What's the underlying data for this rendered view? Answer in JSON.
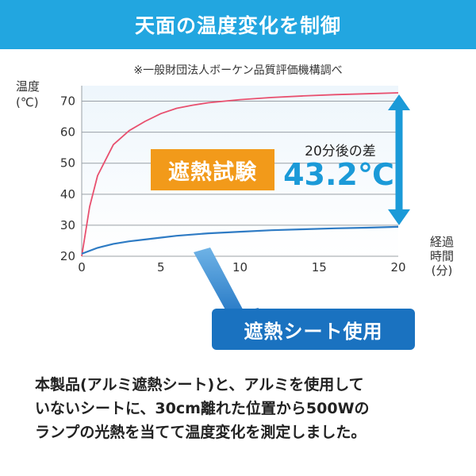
{
  "header": {
    "title": "天面の温度変化を制御"
  },
  "note": "※一般財団法人ボーケン品質評価機構調べ",
  "badges": {
    "test": "遮熱試験",
    "sheet": "遮熱シート使用"
  },
  "difference": {
    "label": "20分後の差",
    "value": "43.2℃"
  },
  "caption": [
    "本製品(アルミ遮熱シート)と、アルミを使用して",
    "いないシートに、30cm離れた位置から500Wの",
    "ランプの光熱を当てて温度変化を測定しました。"
  ],
  "colors": {
    "header_bg": "#22a6e0",
    "control_line": "#e8506f",
    "sheet_line": "#2e7bc4",
    "arrow": "#1b9ad8",
    "orange": "#f29a1a",
    "blue_badge": "#1a72c0"
  },
  "chart_data": {
    "type": "line",
    "ylabel_lines": [
      "温度",
      "(℃)"
    ],
    "xlabel_lines": [
      "経過",
      "時間",
      "(分)"
    ],
    "xlim": [
      0,
      20
    ],
    "ylim": [
      20,
      75
    ],
    "xticks": [
      0,
      5,
      10,
      15,
      20
    ],
    "yticks": [
      20,
      30,
      40,
      50,
      60,
      70
    ],
    "grid": true,
    "series": [
      {
        "color": "#e8506f",
        "x": [
          0,
          0.5,
          1,
          2,
          3,
          4,
          5,
          6,
          7,
          8,
          10,
          12,
          14,
          16,
          18,
          20
        ],
        "y": [
          20,
          36,
          46,
          56,
          60.5,
          63.5,
          66,
          67.7,
          68.7,
          69.5,
          70.5,
          71.2,
          71.7,
          72.1,
          72.4,
          72.7
        ]
      },
      {
        "color": "#2e7bc4",
        "x": [
          0,
          1,
          2,
          3,
          4,
          5,
          6,
          8,
          10,
          12,
          14,
          16,
          18,
          20
        ],
        "y": [
          20.8,
          22.7,
          24,
          24.8,
          25.4,
          26,
          26.6,
          27.4,
          27.9,
          28.4,
          28.7,
          29,
          29.2,
          29.5
        ]
      }
    ]
  }
}
